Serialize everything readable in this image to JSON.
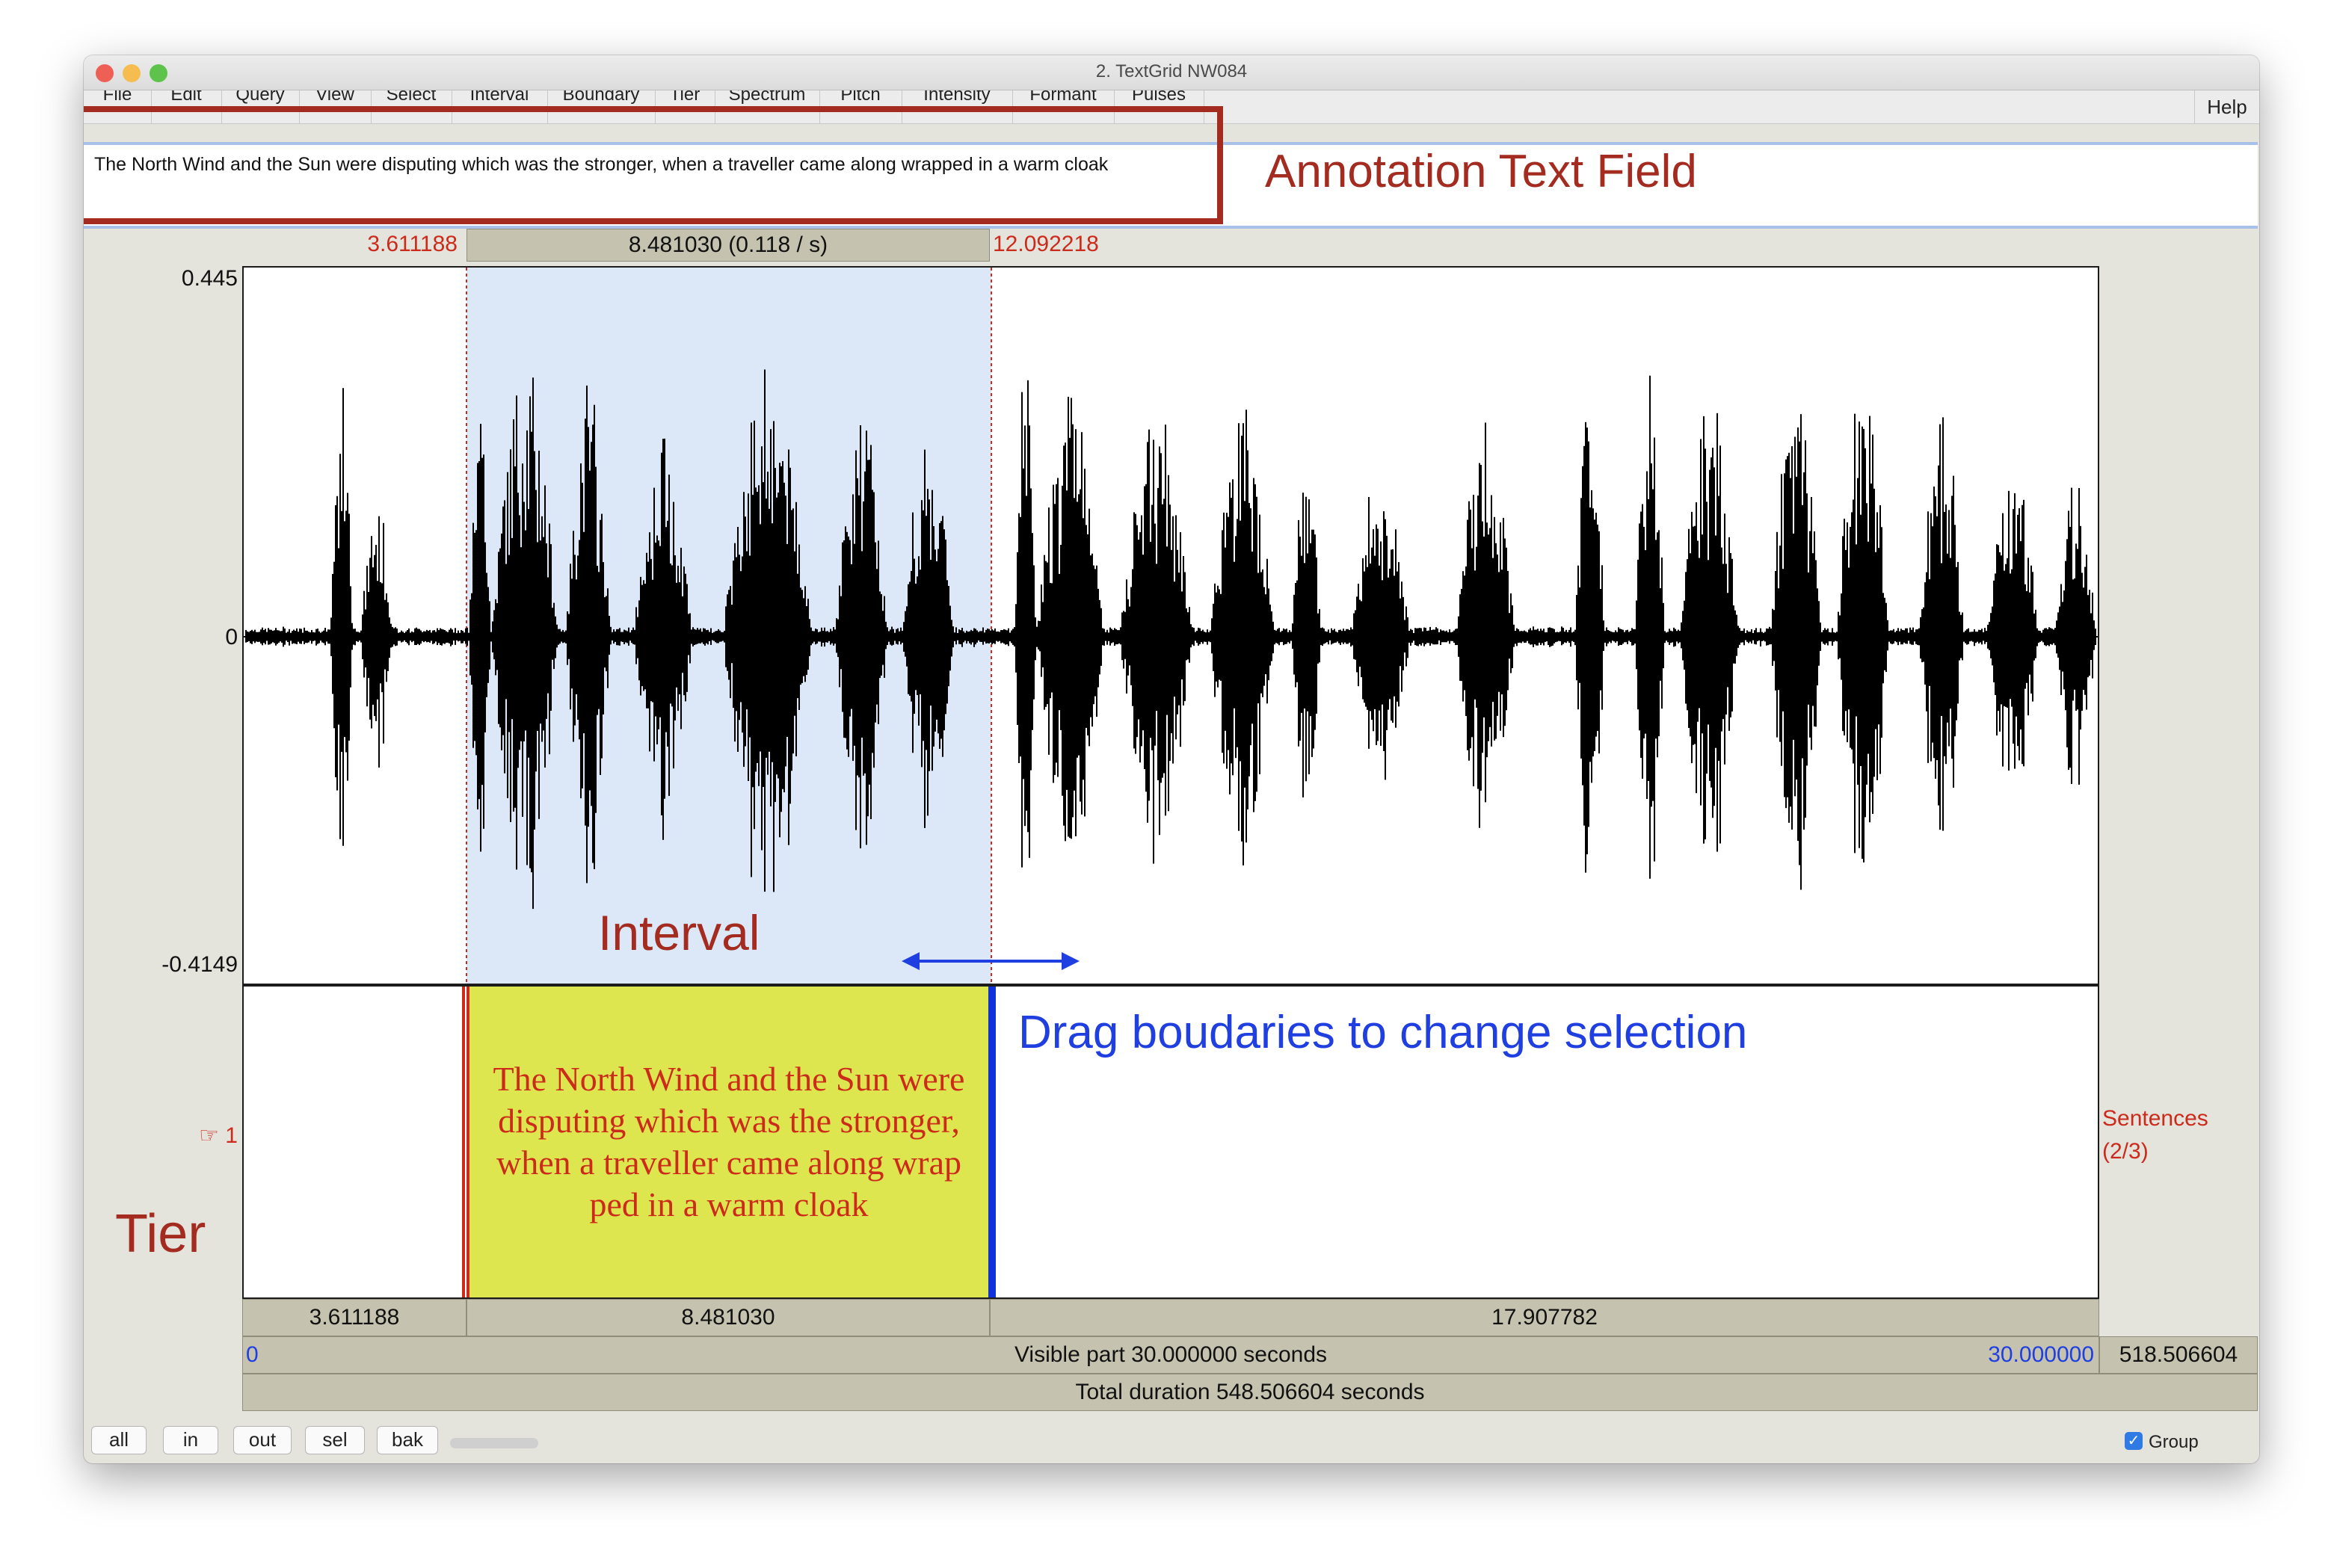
{
  "window": {
    "title": "2. TextGrid NW084"
  },
  "menu": {
    "items": [
      "File",
      "Edit",
      "Query",
      "View",
      "Select",
      "Interval",
      "Boundary",
      "Tier",
      "Spectrum",
      "Pitch",
      "Intensity",
      "Formant",
      "Pulses"
    ],
    "help": "Help"
  },
  "annotation_field": {
    "value": "The North Wind and the Sun were disputing which was the stronger, when a traveller came along wrapped in a warm cloak",
    "callout": "Annotation Text Field"
  },
  "selection": {
    "start": "3.611188",
    "duration": "8.481030 (0.118 / s)",
    "end": "12.092218"
  },
  "waveform": {
    "y_max": "0.445",
    "y_zero": "0",
    "y_min": "-0.4149"
  },
  "tier": {
    "number": "☞ 1",
    "name": "Sentences",
    "count": "(2/3)",
    "interval_text": "The North Wind and the Sun were disputing which was the stronger, when a traveller came along wrapped in a warm cloak",
    "interval_lines": [
      "The North Wind and the Sun were",
      "disputing which was the stronger,",
      "when a traveller came along wrap",
      "ped in a warm cloak"
    ],
    "durations": [
      "3.611188",
      "8.481030",
      "17.907782"
    ]
  },
  "timeline": {
    "visible_start": "0",
    "visible_label": "Visible part 30.000000 seconds",
    "visible_end": "30.000000",
    "right_remaining": "518.506604",
    "total_label": "Total duration 548.506604 seconds"
  },
  "callouts": {
    "interval": "Interval",
    "drag": "Drag boudaries to change selection",
    "tier": "Tier"
  },
  "buttons": [
    "all",
    "in",
    "out",
    "sel",
    "bak"
  ],
  "group": {
    "label": "Group",
    "checked": true
  },
  "colors": {
    "annotation_red": "#a32b1f",
    "selection_blue": "#dce8f8",
    "interval_yellow": "#dde64f",
    "callout_blue": "#1f3fe0"
  }
}
